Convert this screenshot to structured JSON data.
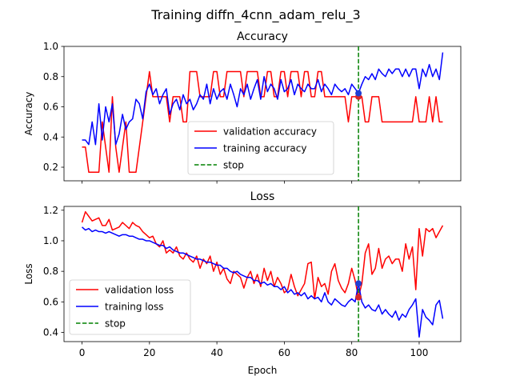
{
  "figure": {
    "suptitle": "Training diffn_4cnn_adam_relu_3"
  },
  "chart_data": [
    {
      "type": "line",
      "title": "Accuracy",
      "xlabel": "",
      "ylabel": "Accuracy",
      "xlim": [
        -5.35,
        112.35
      ],
      "ylim": [
        0.11,
        1.0
      ],
      "xticks": [
        0,
        20,
        40,
        60,
        80,
        100
      ],
      "xtick_labels_visible": false,
      "yticks": [
        0.2,
        0.4,
        0.6,
        0.8,
        1.0
      ],
      "ytick_labels": [
        "0.2",
        "0.4",
        "0.6",
        "0.8",
        "1.0"
      ],
      "legend_position": "lower-center",
      "grid": false,
      "series": [
        {
          "name": "validation accuracy",
          "color": "#ff0000",
          "style": "solid",
          "x": [
            0,
            1,
            2,
            3,
            4,
            5,
            6,
            7,
            8,
            9,
            10,
            11,
            12,
            13,
            14,
            15,
            16,
            17,
            18,
            19,
            20,
            21,
            22,
            23,
            24,
            25,
            26,
            27,
            28,
            29,
            30,
            31,
            32,
            33,
            34,
            35,
            36,
            37,
            38,
            39,
            40,
            41,
            42,
            43,
            44,
            45,
            46,
            47,
            48,
            49,
            50,
            51,
            52,
            53,
            54,
            55,
            56,
            57,
            58,
            59,
            60,
            61,
            62,
            63,
            64,
            65,
            66,
            67,
            68,
            69,
            70,
            71,
            72,
            73,
            74,
            75,
            76,
            77,
            78,
            79,
            80,
            81,
            82,
            83,
            84,
            85,
            86,
            87,
            88,
            89,
            90,
            91,
            92,
            93,
            94,
            95,
            96,
            97,
            98,
            99,
            100,
            101,
            102,
            103,
            104,
            105,
            106,
            107
          ],
          "values": [
            0.333,
            0.333,
            0.167,
            0.167,
            0.167,
            0.167,
            0.5,
            0.333,
            0.167,
            0.667,
            0.333,
            0.167,
            0.333,
            0.5,
            0.167,
            0.167,
            0.167,
            0.333,
            0.5,
            0.667,
            0.833,
            0.667,
            0.667,
            0.667,
            0.667,
            0.667,
            0.5,
            0.667,
            0.667,
            0.667,
            0.5,
            0.5,
            0.833,
            0.833,
            0.833,
            0.667,
            0.667,
            0.667,
            0.667,
            0.833,
            0.833,
            0.667,
            0.667,
            0.833,
            0.833,
            0.833,
            0.833,
            0.833,
            0.667,
            0.833,
            0.833,
            0.833,
            0.833,
            0.667,
            0.667,
            0.833,
            0.833,
            0.667,
            0.667,
            0.833,
            0.833,
            0.667,
            0.833,
            0.833,
            0.833,
            0.667,
            0.833,
            0.833,
            0.667,
            0.667,
            0.833,
            0.833,
            0.667,
            0.667,
            0.667,
            0.667,
            0.667,
            0.667,
            0.667,
            0.5,
            0.667,
            0.667,
            0.667,
            0.667,
            0.5,
            0.5,
            0.667,
            0.667,
            0.667,
            0.5,
            0.5,
            0.5,
            0.5,
            0.5,
            0.5,
            0.5,
            0.5,
            0.5,
            0.5,
            0.667,
            0.5,
            0.5,
            0.5,
            0.667,
            0.5,
            0.667,
            0.5,
            0.5
          ]
        },
        {
          "name": "training accuracy",
          "color": "#0000ff",
          "style": "solid",
          "x": [
            0,
            1,
            2,
            3,
            4,
            5,
            6,
            7,
            8,
            9,
            10,
            11,
            12,
            13,
            14,
            15,
            16,
            17,
            18,
            19,
            20,
            21,
            22,
            23,
            24,
            25,
            26,
            27,
            28,
            29,
            30,
            31,
            32,
            33,
            34,
            35,
            36,
            37,
            38,
            39,
            40,
            41,
            42,
            43,
            44,
            45,
            46,
            47,
            48,
            49,
            50,
            51,
            52,
            53,
            54,
            55,
            56,
            57,
            58,
            59,
            60,
            61,
            62,
            63,
            64,
            65,
            66,
            67,
            68,
            69,
            70,
            71,
            72,
            73,
            74,
            75,
            76,
            77,
            78,
            79,
            80,
            81,
            82,
            83,
            84,
            85,
            86,
            87,
            88,
            89,
            90,
            91,
            92,
            93,
            94,
            95,
            96,
            97,
            98,
            99,
            100,
            101,
            102,
            103,
            104,
            105,
            106,
            107
          ],
          "values": [
            0.38,
            0.38,
            0.35,
            0.5,
            0.35,
            0.62,
            0.38,
            0.6,
            0.5,
            0.62,
            0.35,
            0.42,
            0.55,
            0.45,
            0.5,
            0.52,
            0.65,
            0.62,
            0.52,
            0.7,
            0.75,
            0.68,
            0.72,
            0.62,
            0.68,
            0.72,
            0.55,
            0.62,
            0.65,
            0.58,
            0.68,
            0.62,
            0.65,
            0.58,
            0.62,
            0.68,
            0.65,
            0.75,
            0.62,
            0.72,
            0.65,
            0.7,
            0.72,
            0.65,
            0.75,
            0.68,
            0.6,
            0.72,
            0.68,
            0.75,
            0.65,
            0.72,
            0.78,
            0.65,
            0.8,
            0.7,
            0.75,
            0.72,
            0.65,
            0.78,
            0.7,
            0.72,
            0.78,
            0.68,
            0.75,
            0.72,
            0.7,
            0.75,
            0.72,
            0.72,
            0.78,
            0.7,
            0.75,
            0.72,
            0.68,
            0.75,
            0.72,
            0.7,
            0.72,
            0.68,
            0.75,
            0.72,
            0.69,
            0.75,
            0.8,
            0.78,
            0.82,
            0.78,
            0.85,
            0.82,
            0.8,
            0.85,
            0.82,
            0.85,
            0.85,
            0.8,
            0.85,
            0.8,
            0.85,
            0.85,
            0.72,
            0.85,
            0.8,
            0.88,
            0.8,
            0.85,
            0.78,
            0.96
          ]
        },
        {
          "name": "stop",
          "color": "#008000",
          "style": "dashed",
          "vline_x": 82
        }
      ],
      "markers": [
        {
          "x": 82,
          "y": 0.667,
          "color": "#d62728"
        },
        {
          "x": 82,
          "y": 0.69,
          "color": "#1f3fd4"
        }
      ]
    },
    {
      "type": "line",
      "title": "Loss",
      "xlabel": "Epoch",
      "ylabel": "Loss",
      "xlim": [
        -5.35,
        112.35
      ],
      "ylim": [
        0.34,
        1.225
      ],
      "xticks": [
        0,
        20,
        40,
        60,
        80,
        100
      ],
      "xtick_labels": [
        "0",
        "20",
        "40",
        "60",
        "80",
        "100"
      ],
      "yticks": [
        0.4,
        0.6,
        0.8,
        1.0,
        1.2
      ],
      "ytick_labels": [
        "0.4",
        "0.6",
        "0.8",
        "1.0",
        "1.2"
      ],
      "legend_position": "lower-left",
      "grid": false,
      "series": [
        {
          "name": "validation loss",
          "color": "#ff0000",
          "style": "solid",
          "x": [
            0,
            1,
            2,
            3,
            4,
            5,
            6,
            7,
            8,
            9,
            10,
            11,
            12,
            13,
            14,
            15,
            16,
            17,
            18,
            19,
            20,
            21,
            22,
            23,
            24,
            25,
            26,
            27,
            28,
            29,
            30,
            31,
            32,
            33,
            34,
            35,
            36,
            37,
            38,
            39,
            40,
            41,
            42,
            43,
            44,
            45,
            46,
            47,
            48,
            49,
            50,
            51,
            52,
            53,
            54,
            55,
            56,
            57,
            58,
            59,
            60,
            61,
            62,
            63,
            64,
            65,
            66,
            67,
            68,
            69,
            70,
            71,
            72,
            73,
            74,
            75,
            76,
            77,
            78,
            79,
            80,
            81,
            82,
            83,
            84,
            85,
            86,
            87,
            88,
            89,
            90,
            91,
            92,
            93,
            94,
            95,
            96,
            97,
            98,
            99,
            100,
            101,
            102,
            103,
            104,
            105,
            106,
            107
          ],
          "values": [
            1.12,
            1.19,
            1.16,
            1.13,
            1.14,
            1.15,
            1.1,
            1.1,
            1.14,
            1.07,
            1.08,
            1.09,
            1.12,
            1.1,
            1.08,
            1.12,
            1.1,
            1.09,
            1.06,
            1.04,
            1.02,
            1.03,
            0.98,
            0.96,
            1.0,
            0.92,
            0.94,
            0.92,
            0.96,
            0.9,
            0.88,
            0.92,
            0.88,
            0.86,
            0.9,
            0.82,
            0.88,
            0.85,
            0.9,
            0.8,
            0.86,
            0.78,
            0.82,
            0.75,
            0.72,
            0.8,
            0.78,
            0.76,
            0.69,
            0.76,
            0.8,
            0.72,
            0.78,
            0.7,
            0.82,
            0.74,
            0.8,
            0.7,
            0.76,
            0.72,
            0.66,
            0.68,
            0.78,
            0.7,
            0.64,
            0.68,
            0.72,
            0.85,
            0.86,
            0.62,
            0.76,
            0.7,
            0.72,
            0.65,
            0.8,
            0.85,
            0.74,
            0.69,
            0.66,
            0.72,
            0.82,
            0.74,
            0.63,
            0.72,
            0.92,
            0.98,
            0.78,
            0.82,
            0.95,
            0.82,
            0.88,
            0.9,
            0.85,
            0.88,
            0.88,
            0.8,
            0.98,
            0.88,
            0.96,
            0.68,
            1.08,
            0.9,
            1.08,
            1.06,
            1.08,
            1.02,
            1.06,
            1.1
          ]
        },
        {
          "name": "training loss",
          "color": "#0000ff",
          "style": "solid",
          "x": [
            0,
            1,
            2,
            3,
            4,
            5,
            6,
            7,
            8,
            9,
            10,
            11,
            12,
            13,
            14,
            15,
            16,
            17,
            18,
            19,
            20,
            21,
            22,
            23,
            24,
            25,
            26,
            27,
            28,
            29,
            30,
            31,
            32,
            33,
            34,
            35,
            36,
            37,
            38,
            39,
            40,
            41,
            42,
            43,
            44,
            45,
            46,
            47,
            48,
            49,
            50,
            51,
            52,
            53,
            54,
            55,
            56,
            57,
            58,
            59,
            60,
            61,
            62,
            63,
            64,
            65,
            66,
            67,
            68,
            69,
            70,
            71,
            72,
            73,
            74,
            75,
            76,
            77,
            78,
            79,
            80,
            81,
            82,
            83,
            84,
            85,
            86,
            87,
            88,
            89,
            90,
            91,
            92,
            93,
            94,
            95,
            96,
            97,
            98,
            99,
            100,
            101,
            102,
            103,
            104,
            105,
            106,
            107
          ],
          "values": [
            1.09,
            1.07,
            1.08,
            1.06,
            1.07,
            1.06,
            1.06,
            1.05,
            1.06,
            1.05,
            1.04,
            1.03,
            1.04,
            1.04,
            1.03,
            1.03,
            1.02,
            1.01,
            1.01,
            1.0,
            1.0,
            0.99,
            0.98,
            0.97,
            0.97,
            0.95,
            0.96,
            0.94,
            0.93,
            0.92,
            0.92,
            0.91,
            0.9,
            0.89,
            0.88,
            0.88,
            0.87,
            0.86,
            0.86,
            0.85,
            0.84,
            0.84,
            0.82,
            0.82,
            0.8,
            0.79,
            0.8,
            0.78,
            0.77,
            0.76,
            0.76,
            0.74,
            0.74,
            0.72,
            0.73,
            0.71,
            0.72,
            0.7,
            0.7,
            0.68,
            0.7,
            0.66,
            0.68,
            0.65,
            0.66,
            0.64,
            0.66,
            0.62,
            0.64,
            0.62,
            0.63,
            0.6,
            0.66,
            0.6,
            0.58,
            0.62,
            0.6,
            0.58,
            0.57,
            0.6,
            0.62,
            0.6,
            0.72,
            0.6,
            0.56,
            0.58,
            0.55,
            0.54,
            0.58,
            0.52,
            0.55,
            0.52,
            0.5,
            0.54,
            0.48,
            0.52,
            0.5,
            0.55,
            0.58,
            0.62,
            0.37,
            0.55,
            0.5,
            0.48,
            0.45,
            0.58,
            0.61,
            0.49
          ]
        },
        {
          "name": "stop",
          "color": "#008000",
          "style": "dashed",
          "vline_x": 82
        }
      ],
      "markers": [
        {
          "x": 82,
          "y": 0.63,
          "color": "#d62728"
        },
        {
          "x": 82,
          "y": 0.72,
          "color": "#1f3fd4"
        }
      ]
    }
  ]
}
